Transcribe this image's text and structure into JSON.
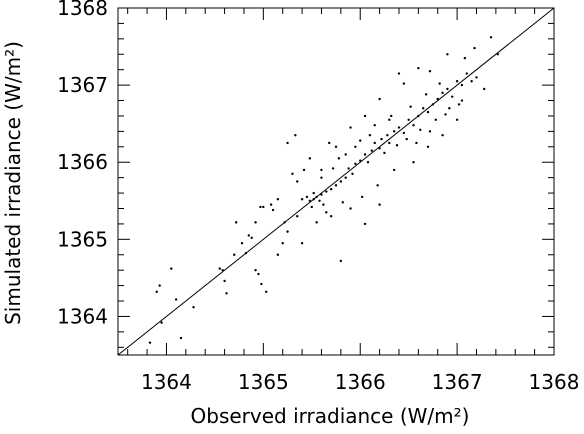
{
  "chart_data": {
    "type": "scatter",
    "xlabel": "Observed irradiance (W/m²)",
    "ylabel": "Simulated irradiance (W/m²)",
    "xlim": [
      1363.5,
      1368.0
    ],
    "ylim": [
      1363.5,
      1368.0
    ],
    "xticks": [
      "1364",
      "1365",
      "1366",
      "1367",
      "1368"
    ],
    "yticks": [
      "1364",
      "1365",
      "1366",
      "1367",
      "1368"
    ],
    "xtick_values": [
      1364,
      1365,
      1366,
      1367,
      1368
    ],
    "ytick_values": [
      1364,
      1365,
      1366,
      1367,
      1368
    ],
    "grid": false,
    "marker": "small black dots",
    "point_color": "#000000",
    "reference_line": {
      "label": "",
      "from": [
        1363.5,
        1363.5
      ],
      "to": [
        1368.0,
        1368.0
      ]
    },
    "points": [
      [
        1363.83,
        1363.66
      ],
      [
        1363.9,
        1364.32
      ],
      [
        1363.93,
        1364.4
      ],
      [
        1364.05,
        1364.62
      ],
      [
        1363.95,
        1363.92
      ],
      [
        1364.1,
        1364.22
      ],
      [
        1364.28,
        1364.12
      ],
      [
        1364.15,
        1363.72
      ],
      [
        1364.55,
        1364.62
      ],
      [
        1364.58,
        1364.6
      ],
      [
        1364.6,
        1364.46
      ],
      [
        1364.7,
        1364.8
      ],
      [
        1364.78,
        1364.95
      ],
      [
        1364.82,
        1364.82
      ],
      [
        1364.85,
        1365.05
      ],
      [
        1364.88,
        1365.02
      ],
      [
        1364.62,
        1364.3
      ],
      [
        1364.92,
        1364.6
      ],
      [
        1364.95,
        1364.55
      ],
      [
        1364.98,
        1364.42
      ],
      [
        1365.03,
        1364.32
      ],
      [
        1364.92,
        1365.22
      ],
      [
        1364.97,
        1365.42
      ],
      [
        1365.0,
        1365.42
      ],
      [
        1365.08,
        1365.45
      ],
      [
        1365.1,
        1365.38
      ],
      [
        1365.15,
        1365.52
      ],
      [
        1364.72,
        1365.22
      ],
      [
        1365.15,
        1364.8
      ],
      [
        1365.2,
        1364.95
      ],
      [
        1365.22,
        1365.22
      ],
      [
        1365.25,
        1365.1
      ],
      [
        1365.35,
        1365.3
      ],
      [
        1365.4,
        1364.95
      ],
      [
        1365.8,
        1364.72
      ],
      [
        1365.35,
        1365.75
      ],
      [
        1365.3,
        1365.85
      ],
      [
        1365.42,
        1365.9
      ],
      [
        1365.48,
        1366.05
      ],
      [
        1365.25,
        1366.25
      ],
      [
        1365.33,
        1366.35
      ],
      [
        1365.6,
        1365.9
      ],
      [
        1365.65,
        1365.35
      ],
      [
        1365.4,
        1365.52
      ],
      [
        1365.48,
        1365.5
      ],
      [
        1365.52,
        1365.52
      ],
      [
        1365.55,
        1365.55
      ],
      [
        1365.6,
        1365.58
      ],
      [
        1365.65,
        1365.62
      ],
      [
        1365.7,
        1365.65
      ],
      [
        1365.75,
        1365.7
      ],
      [
        1365.8,
        1365.75
      ],
      [
        1365.85,
        1365.8
      ],
      [
        1365.88,
        1365.92
      ],
      [
        1365.92,
        1365.85
      ],
      [
        1365.95,
        1365.98
      ],
      [
        1366.0,
        1366.02
      ],
      [
        1366.05,
        1366.1
      ],
      [
        1366.08,
        1366.0
      ],
      [
        1366.12,
        1366.15
      ],
      [
        1366.15,
        1366.25
      ],
      [
        1366.2,
        1366.18
      ],
      [
        1366.22,
        1366.3
      ],
      [
        1366.28,
        1366.35
      ],
      [
        1366.3,
        1366.25
      ],
      [
        1366.35,
        1366.4
      ],
      [
        1366.4,
        1366.45
      ],
      [
        1366.45,
        1366.38
      ],
      [
        1366.5,
        1366.55
      ],
      [
        1366.55,
        1366.48
      ],
      [
        1366.6,
        1366.6
      ],
      [
        1366.65,
        1366.7
      ],
      [
        1366.7,
        1366.65
      ],
      [
        1366.75,
        1366.75
      ],
      [
        1366.8,
        1366.82
      ],
      [
        1366.85,
        1366.9
      ],
      [
        1366.9,
        1366.95
      ],
      [
        1366.95,
        1366.85
      ],
      [
        1367.0,
        1367.05
      ],
      [
        1367.05,
        1367.0
      ],
      [
        1367.1,
        1367.15
      ],
      [
        1367.15,
        1367.05
      ],
      [
        1367.2,
        1367.1
      ],
      [
        1366.4,
        1367.15
      ],
      [
        1366.45,
        1367.02
      ],
      [
        1366.6,
        1367.22
      ],
      [
        1366.72,
        1367.18
      ],
      [
        1366.9,
        1367.4
      ],
      [
        1367.08,
        1367.35
      ],
      [
        1367.18,
        1367.48
      ],
      [
        1367.35,
        1367.62
      ],
      [
        1367.42,
        1367.4
      ],
      [
        1367.28,
        1366.95
      ],
      [
        1367.0,
        1366.55
      ],
      [
        1366.85,
        1366.35
      ],
      [
        1366.7,
        1366.2
      ],
      [
        1366.55,
        1366.0
      ],
      [
        1366.35,
        1365.9
      ],
      [
        1366.18,
        1365.7
      ],
      [
        1366.02,
        1365.55
      ],
      [
        1365.9,
        1365.4
      ],
      [
        1366.05,
        1365.2
      ],
      [
        1366.2,
        1365.45
      ],
      [
        1365.75,
        1366.2
      ],
      [
        1365.9,
        1366.45
      ],
      [
        1366.05,
        1366.6
      ],
      [
        1366.2,
        1366.82
      ],
      [
        1366.3,
        1366.55
      ],
      [
        1366.1,
        1366.35
      ],
      [
        1365.95,
        1366.2
      ],
      [
        1365.78,
        1366.05
      ],
      [
        1365.6,
        1365.8
      ],
      [
        1365.55,
        1365.22
      ],
      [
        1365.7,
        1365.3
      ],
      [
        1365.82,
        1365.48
      ],
      [
        1365.5,
        1365.42
      ],
      [
        1365.58,
        1365.5
      ],
      [
        1365.62,
        1365.45
      ],
      [
        1365.45,
        1365.55
      ],
      [
        1365.52,
        1365.6
      ],
      [
        1366.25,
        1366.12
      ],
      [
        1366.38,
        1366.22
      ],
      [
        1366.48,
        1366.3
      ],
      [
        1366.62,
        1366.42
      ],
      [
        1366.78,
        1366.55
      ],
      [
        1366.92,
        1366.7
      ],
      [
        1367.05,
        1366.8
      ],
      [
        1366.15,
        1366.48
      ],
      [
        1366.32,
        1366.6
      ],
      [
        1366.52,
        1366.72
      ],
      [
        1366.68,
        1366.88
      ],
      [
        1366.82,
        1367.02
      ],
      [
        1366.0,
        1366.28
      ],
      [
        1365.85,
        1366.1
      ],
      [
        1365.72,
        1365.92
      ],
      [
        1365.68,
        1366.25
      ],
      [
        1366.58,
        1366.25
      ],
      [
        1366.72,
        1366.4
      ],
      [
        1366.88,
        1366.62
      ],
      [
        1367.02,
        1366.75
      ]
    ]
  }
}
